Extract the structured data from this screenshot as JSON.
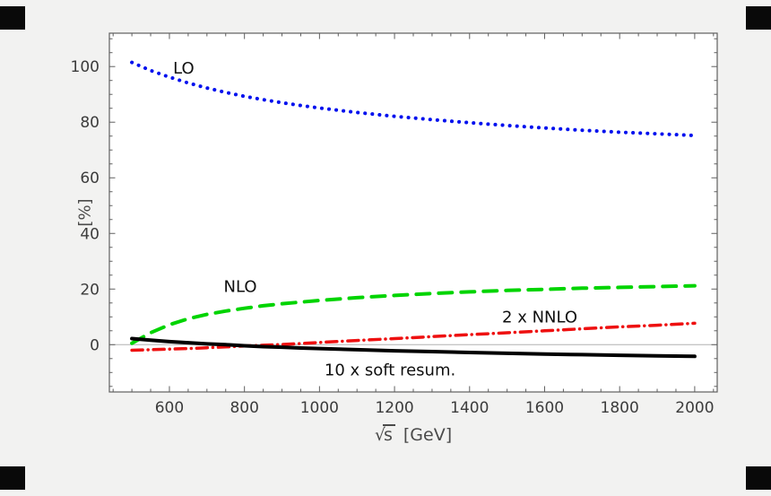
{
  "figure": {
    "background_color": "#f2f2f1",
    "corner_mark_color": "#090909"
  },
  "chart_data": {
    "type": "line",
    "title": "",
    "xlabel": "√s [GeV]",
    "xlabel_parts": {
      "radical": "√",
      "radicand": "s",
      "unit": "[GeV]"
    },
    "ylabel": "[%]",
    "xlim": [
      440,
      2060
    ],
    "ylim": [
      -17,
      112
    ],
    "x_ticks": [
      600,
      800,
      1000,
      1200,
      1400,
      1600,
      1800,
      2000
    ],
    "y_ticks": [
      0,
      20,
      40,
      60,
      80,
      100
    ],
    "grid": false,
    "legend_position": "inline-curve-labels",
    "zero_line_color": "#b0b0b0",
    "frame_color": "#5f5f5f",
    "plot_background": "#ffffff",
    "x": [
      500,
      550,
      600,
      650,
      700,
      750,
      800,
      850,
      900,
      950,
      1000,
      1100,
      1200,
      1300,
      1400,
      1500,
      1600,
      1700,
      1800,
      1900,
      2000
    ],
    "series": [
      {
        "name": "LO",
        "color": "#0010ee",
        "style": "dotted",
        "width": 4,
        "values": [
          101.5,
          98.6,
          96.2,
          94.1,
          92.3,
          90.7,
          89.3,
          88.1,
          87.0,
          86.0,
          85.1,
          83.5,
          82.1,
          80.9,
          79.8,
          78.8,
          77.9,
          77.1,
          76.4,
          75.8,
          75.2
        ]
      },
      {
        "name": "NLO",
        "color": "#00d400",
        "style": "dashed",
        "width": 4,
        "values": [
          0.5,
          4.3,
          7.2,
          9.3,
          10.9,
          12.1,
          13.1,
          14.0,
          14.7,
          15.3,
          15.9,
          16.9,
          17.7,
          18.4,
          19.0,
          19.5,
          19.9,
          20.3,
          20.6,
          20.9,
          21.2
        ]
      },
      {
        "name": "2 x NNLO",
        "color": "#ee1010",
        "style": "dashdot",
        "width": 3.5,
        "values": [
          -2.0,
          -1.8,
          -1.6,
          -1.4,
          -1.1,
          -0.8,
          -0.5,
          -0.2,
          0.1,
          0.4,
          0.8,
          1.5,
          2.2,
          2.9,
          3.6,
          4.3,
          5.0,
          5.7,
          6.4,
          7.0,
          7.7
        ]
      },
      {
        "name": "10 x soft resum.",
        "color": "#000000",
        "style": "solid",
        "width": 4,
        "values": [
          2.2,
          1.6,
          1.1,
          0.7,
          0.3,
          0.0,
          -0.4,
          -0.7,
          -0.9,
          -1.2,
          -1.4,
          -1.8,
          -2.2,
          -2.5,
          -2.8,
          -3.1,
          -3.4,
          -3.6,
          -3.8,
          -4.0,
          -4.2
        ]
      }
    ],
    "annotations": [
      {
        "text": "LO",
        "x": 638,
        "y": 97.5
      },
      {
        "text": "NLO",
        "x": 789,
        "y": 19
      },
      {
        "text": "2 x NNLO",
        "x": 1587,
        "y": 8
      },
      {
        "text": "10 x soft resum.",
        "x": 1188,
        "y": -11
      }
    ]
  }
}
